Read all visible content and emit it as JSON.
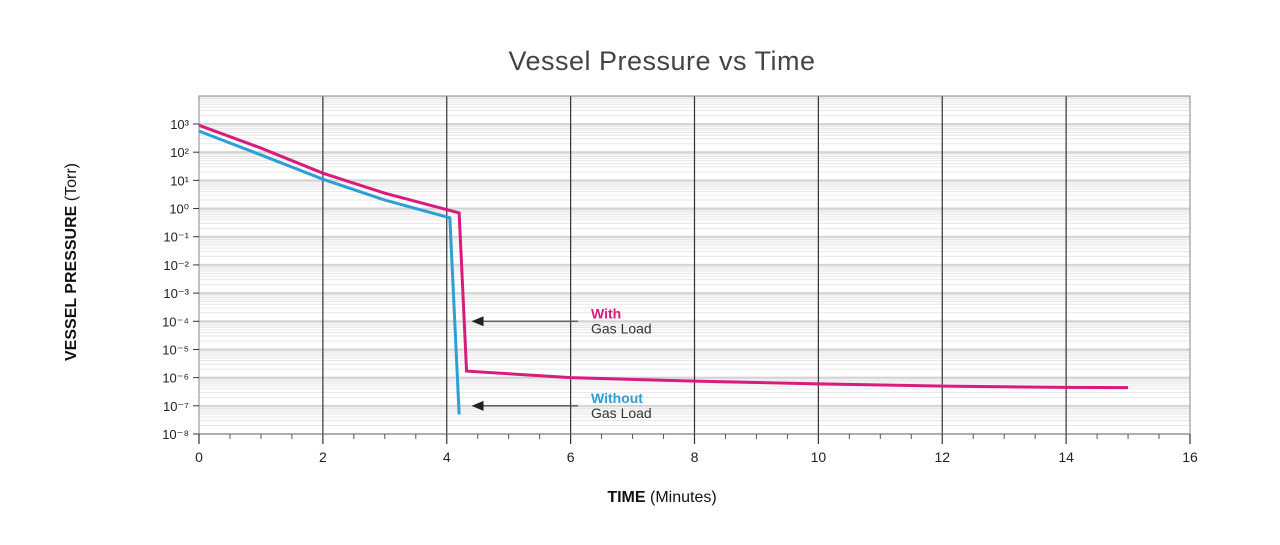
{
  "chart_data": {
    "type": "line",
    "title": "Vessel Pressure vs Time",
    "xlabel": {
      "bold": "TIME",
      "rest": " (Minutes)"
    },
    "ylabel": {
      "bold": "VESSEL PRESSURE",
      "rest": " (Torr)"
    },
    "xlim": [
      0,
      16
    ],
    "ylim_log10": [
      -8,
      3
    ],
    "yscale": "log",
    "xticks": [
      0,
      2,
      4,
      6,
      8,
      10,
      12,
      14,
      16
    ],
    "xtick_labels": [
      "0",
      "2",
      "4",
      "6",
      "8",
      "10",
      "12",
      "14",
      "16"
    ],
    "ytick_exponents": [
      3,
      2,
      1,
      0,
      -1,
      -2,
      -3,
      -4,
      -5,
      -6,
      -7,
      -8
    ],
    "ytick_labels": [
      "10³",
      "10²",
      "10¹",
      "10⁰",
      "10⁻¹",
      "10⁻²",
      "10⁻³",
      "10⁻⁴",
      "10⁻⁵",
      "10⁻⁶",
      "10⁻⁷",
      "10⁻⁸"
    ],
    "grid": true,
    "series": [
      {
        "name": "With Gas Load",
        "color": "#d81b7d",
        "x": [
          0,
          1,
          2,
          3,
          4.2,
          4.32,
          6,
          8,
          10,
          12,
          14,
          15
        ],
        "y": [
          900,
          140,
          18,
          3.5,
          0.7,
          1.7e-06,
          1e-06,
          7.5e-07,
          6e-07,
          5e-07,
          4.5e-07,
          4.4e-07
        ]
      },
      {
        "name": "Without Gas Load",
        "color": "#2e9fd6",
        "x": [
          0,
          1,
          2,
          3,
          4.05,
          4.2
        ],
        "y": [
          560,
          80,
          11,
          2,
          0.47,
          5e-08
        ]
      }
    ],
    "annotations": [
      {
        "line1": "With",
        "line2": "Gas Load",
        "color": "#d81b7d",
        "arrow_to": [
          4.4,
          0.0001
        ]
      },
      {
        "line1": "Without",
        "line2": "Gas Load",
        "color": "#2e9fd6",
        "arrow_to": [
          4.4,
          1e-07
        ]
      }
    ]
  }
}
